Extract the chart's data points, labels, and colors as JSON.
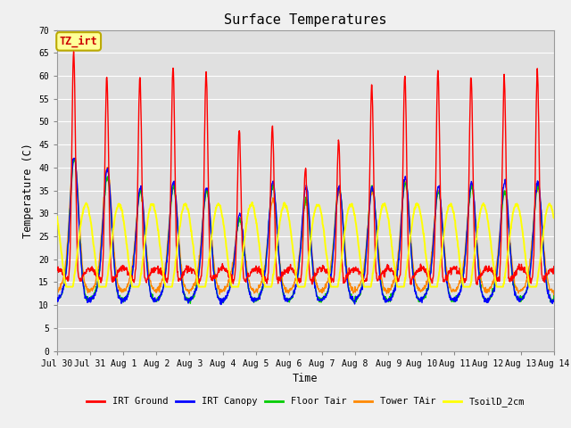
{
  "title": "Surface Temperatures",
  "xlabel": "Time",
  "ylabel": "Temperature (C)",
  "ylim": [
    0,
    70
  ],
  "yticks": [
    0,
    5,
    10,
    15,
    20,
    25,
    30,
    35,
    40,
    45,
    50,
    55,
    60,
    65,
    70
  ],
  "xtick_labels": [
    "Jul 30",
    "Jul 31",
    "Aug 1",
    "Aug 2",
    "Aug 3",
    "Aug 4",
    "Aug 5",
    "Aug 6",
    "Aug 7",
    "Aug 8",
    "Aug 9",
    "Aug 10",
    "Aug 11",
    "Aug 12",
    "Aug 13",
    "Aug 14"
  ],
  "series": [
    {
      "name": "IRT Ground",
      "color": "#FF0000"
    },
    {
      "name": "IRT Canopy",
      "color": "#0000FF"
    },
    {
      "name": "Floor Tair",
      "color": "#00CC00"
    },
    {
      "name": "Tower TAir",
      "color": "#FF8800"
    },
    {
      "name": "TsoilD_2cm",
      "color": "#FFFF00"
    }
  ],
  "annotation_text": "TZ_irt",
  "annotation_bg": "#FFFF99",
  "annotation_border": "#BBAA00",
  "fig_bg": "#F0F0F0",
  "plot_bg": "#E0E0E0",
  "grid_color": "#FFFFFF",
  "n_days": 15,
  "pts_per_day": 96,
  "irt_peaks": [
    67,
    62,
    62,
    64,
    63,
    50,
    51,
    42,
    48,
    60,
    62,
    63,
    62,
    62,
    63
  ],
  "canopy_peaks": [
    40,
    37,
    33,
    34,
    33,
    27,
    34,
    33,
    33,
    33,
    35,
    33,
    34,
    34,
    34
  ],
  "floor_peaks": [
    39,
    35,
    32,
    33,
    32,
    26,
    33,
    30,
    33,
    33,
    34,
    32,
    33,
    32,
    33
  ],
  "tower_peaks": [
    40,
    37,
    32,
    33,
    32,
    26,
    30,
    30,
    32,
    32,
    34,
    32,
    33,
    32,
    33
  ],
  "irt_night_min": 16,
  "canopy_night_min": 12,
  "floor_night_min": 12,
  "tower_night_min": 14,
  "soil_mean": 22,
  "soil_amp": 10,
  "soil_phase": 0.62
}
